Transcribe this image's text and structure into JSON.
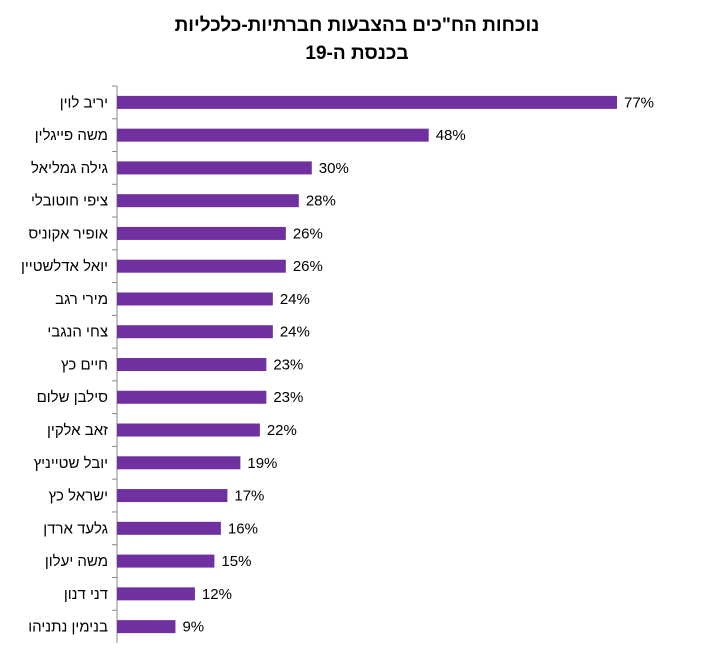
{
  "chart_data": {
    "type": "bar",
    "orientation": "horizontal",
    "title": [
      "נוכחות הח\"כים בהצבעות חברתיות-כלכליות",
      "בכנסת ה-19"
    ],
    "categories": [
      "יריב לוין",
      "משה פייגלין",
      "גילה גמליאל",
      "ציפי חוטובלי",
      "אופיר אקוניס",
      "יואל אדלשטיין",
      "מירי רגב",
      "צחי הנגבי",
      "חיים כץ",
      "סילבן שלום",
      "זאב אלקין",
      "יובל שטייניץ",
      "ישראל כץ",
      "גלעד ארדן",
      "משה יעלון",
      "דני דנון",
      "בנימין נתניהו"
    ],
    "values": [
      77,
      48,
      30,
      28,
      26,
      26,
      24,
      24,
      23,
      23,
      22,
      19,
      17,
      16,
      15,
      12,
      9
    ],
    "value_labels": [
      "77%",
      "48%",
      "30%",
      "28%",
      "26%",
      "26%",
      "24%",
      "24%",
      "23%",
      "23%",
      "22%",
      "19%",
      "17%",
      "16%",
      "15%",
      "12%",
      "9%"
    ],
    "color": "#7030a0"
  }
}
